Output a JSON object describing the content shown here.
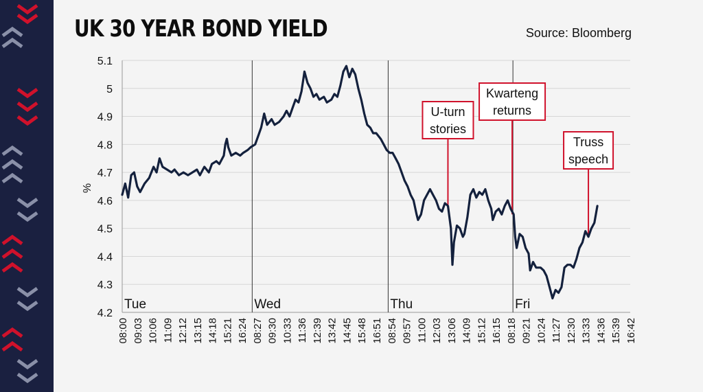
{
  "colors": {
    "strip": "#1a2040",
    "line": "#14213d",
    "annotation": "#d0112b",
    "grid": "#d6d6d6",
    "chevron_light": "#8a90a8",
    "chevron_red": "#d0112b"
  },
  "chart_data": {
    "type": "line",
    "title": "UK 30 YEAR BOND YIELD",
    "source": "Source: Bloomberg",
    "ylabel": "%",
    "ylim": [
      4.2,
      5.1
    ],
    "yticks": [
      "4.2",
      "4.3",
      "4.4",
      "4.5",
      "4.6",
      "4.7",
      "4.8",
      "4.9",
      "5",
      "5.1"
    ],
    "xticks": [
      "08:00",
      "09:03",
      "10:06",
      "11:09",
      "12:12",
      "13:15",
      "14:18",
      "15:21",
      "16:24",
      "08:27",
      "09:30",
      "10:33",
      "11:36",
      "12:39",
      "13:42",
      "14:45",
      "15:48",
      "16:51",
      "08:54",
      "09:57",
      "11:00",
      "12:03",
      "13:06",
      "14:09",
      "15:12",
      "16:15",
      "08:18",
      "09:21",
      "10:24",
      "11:27",
      "12:30",
      "13:33",
      "14:36",
      "15:39",
      "16:42"
    ],
    "days": [
      {
        "label": "Tue",
        "start_tick": 0
      },
      {
        "label": "Wed",
        "start_tick": 8.7
      },
      {
        "label": "Thu",
        "start_tick": 17.8
      },
      {
        "label": "Fri",
        "start_tick": 26.15
      }
    ],
    "grid": "horizontal",
    "series": [
      {
        "points": [
          [
            0,
            4.62
          ],
          [
            0.2,
            4.66
          ],
          [
            0.4,
            4.61
          ],
          [
            0.6,
            4.69
          ],
          [
            0.8,
            4.7
          ],
          [
            1.0,
            4.65
          ],
          [
            1.2,
            4.63
          ],
          [
            1.5,
            4.66
          ],
          [
            1.8,
            4.68
          ],
          [
            2.1,
            4.72
          ],
          [
            2.3,
            4.7
          ],
          [
            2.5,
            4.75
          ],
          [
            2.7,
            4.72
          ],
          [
            3.0,
            4.71
          ],
          [
            3.3,
            4.7
          ],
          [
            3.5,
            4.71
          ],
          [
            3.8,
            4.69
          ],
          [
            4.1,
            4.7
          ],
          [
            4.4,
            4.69
          ],
          [
            4.7,
            4.7
          ],
          [
            5.0,
            4.71
          ],
          [
            5.2,
            4.69
          ],
          [
            5.5,
            4.72
          ],
          [
            5.8,
            4.7
          ],
          [
            6.0,
            4.73
          ],
          [
            6.3,
            4.74
          ],
          [
            6.5,
            4.73
          ],
          [
            6.8,
            4.76
          ],
          [
            6.9,
            4.8
          ],
          [
            7.0,
            4.82
          ],
          [
            7.1,
            4.79
          ],
          [
            7.3,
            4.76
          ],
          [
            7.6,
            4.77
          ],
          [
            7.9,
            4.76
          ],
          [
            8.1,
            4.77
          ],
          [
            8.4,
            4.78
          ],
          [
            8.6,
            4.79
          ],
          [
            8.9,
            4.8
          ],
          [
            9.1,
            4.83
          ],
          [
            9.3,
            4.86
          ],
          [
            9.5,
            4.91
          ],
          [
            9.7,
            4.87
          ],
          [
            10.0,
            4.89
          ],
          [
            10.2,
            4.87
          ],
          [
            10.5,
            4.88
          ],
          [
            10.8,
            4.9
          ],
          [
            11.0,
            4.92
          ],
          [
            11.2,
            4.9
          ],
          [
            11.4,
            4.93
          ],
          [
            11.6,
            4.96
          ],
          [
            11.8,
            4.95
          ],
          [
            12.0,
            4.99
          ],
          [
            12.2,
            5.06
          ],
          [
            12.4,
            5.02
          ],
          [
            12.6,
            5.0
          ],
          [
            12.8,
            4.97
          ],
          [
            13.0,
            4.98
          ],
          [
            13.2,
            4.96
          ],
          [
            13.5,
            4.97
          ],
          [
            13.7,
            4.95
          ],
          [
            14.0,
            4.96
          ],
          [
            14.2,
            4.98
          ],
          [
            14.4,
            4.97
          ],
          [
            14.6,
            5.01
          ],
          [
            14.8,
            5.06
          ],
          [
            15.0,
            5.08
          ],
          [
            15.2,
            5.04
          ],
          [
            15.4,
            5.07
          ],
          [
            15.6,
            5.05
          ],
          [
            15.8,
            5.0
          ],
          [
            16.0,
            4.96
          ],
          [
            16.2,
            4.91
          ],
          [
            16.4,
            4.87
          ],
          [
            16.6,
            4.86
          ],
          [
            16.8,
            4.84
          ],
          [
            17.0,
            4.84
          ],
          [
            17.3,
            4.82
          ],
          [
            17.5,
            4.8
          ],
          [
            17.7,
            4.78
          ],
          [
            17.9,
            4.77
          ],
          [
            18.1,
            4.77
          ],
          [
            18.3,
            4.75
          ],
          [
            18.5,
            4.73
          ],
          [
            18.7,
            4.7
          ],
          [
            18.9,
            4.67
          ],
          [
            19.1,
            4.65
          ],
          [
            19.3,
            4.62
          ],
          [
            19.5,
            4.6
          ],
          [
            19.7,
            4.55
          ],
          [
            19.8,
            4.53
          ],
          [
            20.0,
            4.55
          ],
          [
            20.2,
            4.6
          ],
          [
            20.4,
            4.62
          ],
          [
            20.6,
            4.64
          ],
          [
            20.8,
            4.62
          ],
          [
            21.0,
            4.6
          ],
          [
            21.2,
            4.57
          ],
          [
            21.4,
            4.56
          ],
          [
            21.6,
            4.59
          ],
          [
            21.8,
            4.58
          ],
          [
            22.0,
            4.5
          ],
          [
            22.1,
            4.37
          ],
          [
            22.2,
            4.45
          ],
          [
            22.4,
            4.51
          ],
          [
            22.6,
            4.5
          ],
          [
            22.8,
            4.47
          ],
          [
            22.9,
            4.48
          ],
          [
            23.1,
            4.54
          ],
          [
            23.3,
            4.62
          ],
          [
            23.5,
            4.64
          ],
          [
            23.7,
            4.61
          ],
          [
            23.9,
            4.63
          ],
          [
            24.1,
            4.62
          ],
          [
            24.3,
            4.64
          ],
          [
            24.5,
            4.6
          ],
          [
            24.7,
            4.57
          ],
          [
            24.8,
            4.53
          ],
          [
            25.0,
            4.56
          ],
          [
            25.2,
            4.57
          ],
          [
            25.4,
            4.55
          ],
          [
            25.6,
            4.58
          ],
          [
            25.8,
            4.6
          ],
          [
            26.0,
            4.57
          ],
          [
            26.2,
            4.55
          ],
          [
            26.3,
            4.47
          ],
          [
            26.4,
            4.43
          ],
          [
            26.6,
            4.48
          ],
          [
            26.8,
            4.47
          ],
          [
            27.0,
            4.43
          ],
          [
            27.2,
            4.41
          ],
          [
            27.3,
            4.35
          ],
          [
            27.5,
            4.38
          ],
          [
            27.7,
            4.36
          ],
          [
            28.0,
            4.36
          ],
          [
            28.2,
            4.35
          ],
          [
            28.4,
            4.33
          ],
          [
            28.6,
            4.29
          ],
          [
            28.8,
            4.25
          ],
          [
            29.0,
            4.28
          ],
          [
            29.2,
            4.27
          ],
          [
            29.4,
            4.29
          ],
          [
            29.6,
            4.36
          ],
          [
            29.8,
            4.37
          ],
          [
            30.0,
            4.37
          ],
          [
            30.2,
            4.36
          ],
          [
            30.4,
            4.39
          ],
          [
            30.6,
            4.43
          ],
          [
            30.8,
            4.45
          ],
          [
            31.0,
            4.49
          ],
          [
            31.2,
            4.47
          ],
          [
            31.4,
            4.5
          ],
          [
            31.6,
            4.52
          ],
          [
            31.8,
            4.58
          ]
        ]
      }
    ],
    "annotations": [
      {
        "lines": [
          "U-turn",
          "stories"
        ],
        "tick": 21.8
      },
      {
        "lines": [
          "Kwarteng",
          "returns"
        ],
        "tick": 26.1
      },
      {
        "lines": [
          "Truss",
          "speech"
        ],
        "tick": 31.2
      }
    ]
  }
}
